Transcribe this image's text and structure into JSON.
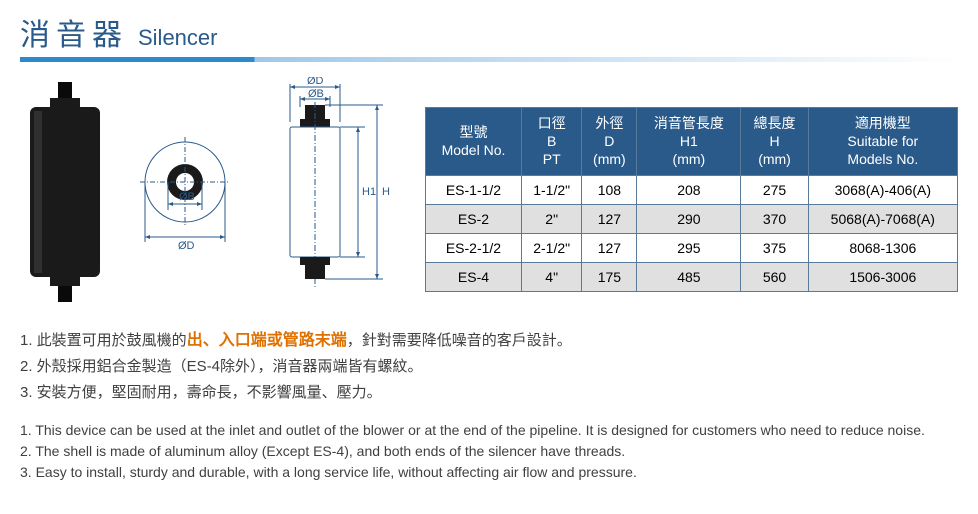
{
  "title": {
    "zh": "消音器",
    "en": "Silencer"
  },
  "colors": {
    "heading": "#2a5a8a",
    "accent_bar": "#2a8acc",
    "table_header_bg": "#2a5a8a",
    "table_header_fg": "#ffffff",
    "row_alt_bg": "#e0e0e0",
    "highlight": "#e07000",
    "diagram_line": "#2a5a8a"
  },
  "table": {
    "headers": [
      {
        "zh": "型號",
        "en": "Model No."
      },
      {
        "zh": "口徑",
        "sub": "B",
        "unit": "PT"
      },
      {
        "zh": "外徑",
        "sub": "D",
        "unit": "(mm)"
      },
      {
        "zh": "消音管長度",
        "sub": "H1",
        "unit": "(mm)"
      },
      {
        "zh": "總長度",
        "sub": "H",
        "unit": "(mm)"
      },
      {
        "zh": "適用機型",
        "en": "Suitable for",
        "en2": "Models No."
      }
    ],
    "rows": [
      {
        "model": "ES-1-1/2",
        "b": "1-1/2\"",
        "d": "108",
        "h1": "208",
        "h": "275",
        "suit": "3068(A)-406(A)"
      },
      {
        "model": "ES-2",
        "b": "2\"",
        "d": "127",
        "h1": "290",
        "h": "370",
        "suit": "5068(A)-7068(A)"
      },
      {
        "model": "ES-2-1/2",
        "b": "2-1/2\"",
        "d": "127",
        "h1": "295",
        "h": "375",
        "suit": "8068-1306"
      },
      {
        "model": "ES-4",
        "b": "4\"",
        "d": "175",
        "h1": "485",
        "h": "560",
        "suit": "1506-3006"
      }
    ]
  },
  "notes_zh": {
    "n1_pre": "1. 此裝置可用於鼓風機的",
    "n1_hi": "出、入口端或管路末端",
    "n1_post": "，針對需要降低噪音的客戶設計。",
    "n2": "2. 外殼採用鋁合金製造（ES-4除外），消音器兩端皆有螺紋。",
    "n3": "3. 安裝方便，堅固耐用，壽命長，不影響風量、壓力。"
  },
  "notes_en": {
    "n1": "1. This device can be used at the inlet and outlet of the blower or at the end of the pipeline. It is designed for customers who need to reduce noise.",
    "n2": "2. The shell is made of aluminum alloy (Except ES-4), and both ends of the silencer have threads.",
    "n3": "3. Easy to install, sturdy and durable, with a long service life, without affecting air flow and pressure."
  },
  "diagram_labels": {
    "od": "ØD",
    "ob": "ØB",
    "h1": "H1",
    "h": "H"
  }
}
